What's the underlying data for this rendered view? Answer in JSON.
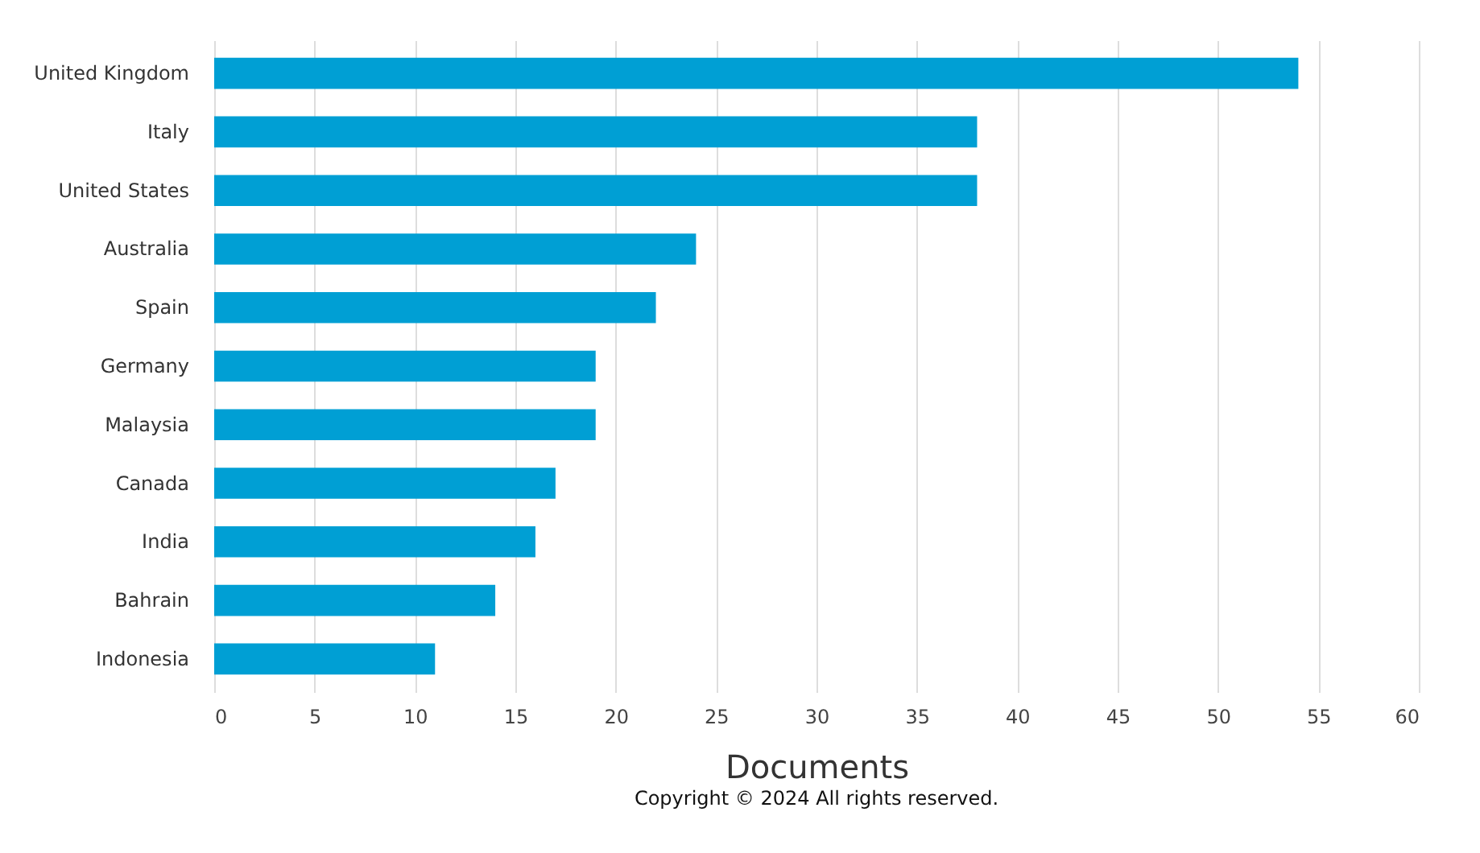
{
  "chart_data": {
    "type": "bar",
    "orientation": "horizontal",
    "categories": [
      "United Kingdom",
      "Italy",
      "United States",
      "Australia",
      "Spain",
      "Germany",
      "Malaysia",
      "Canada",
      "India",
      "Bahrain",
      "Indonesia"
    ],
    "values": [
      54,
      38,
      38,
      24,
      22,
      19,
      19,
      17,
      16,
      14,
      11
    ],
    "color": "#009fd4",
    "xlabel": "Documents",
    "xlim": [
      0,
      60
    ],
    "xticks": [
      0,
      5,
      10,
      15,
      20,
      25,
      30,
      35,
      40,
      45,
      50,
      55,
      60
    ],
    "grid": "x",
    "annotations": [
      "Copyright © 2024 All rights reserved."
    ]
  }
}
